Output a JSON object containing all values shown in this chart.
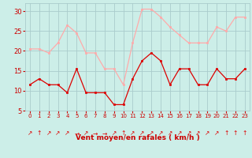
{
  "hours": [
    0,
    1,
    2,
    3,
    4,
    5,
    6,
    7,
    8,
    9,
    10,
    11,
    12,
    13,
    14,
    15,
    16,
    17,
    18,
    19,
    20,
    21,
    22,
    23
  ],
  "wind_avg": [
    11.5,
    13,
    11.5,
    11.5,
    9.5,
    15.5,
    9.5,
    9.5,
    9.5,
    6.5,
    6.5,
    13,
    17.5,
    19.5,
    17.5,
    11.5,
    15.5,
    15.5,
    11.5,
    11.5,
    15.5,
    13,
    13,
    15.5
  ],
  "wind_gust": [
    20.5,
    20.5,
    19.5,
    22,
    26.5,
    24.5,
    19.5,
    19.5,
    15.5,
    15.5,
    11.5,
    22,
    30.5,
    30.5,
    28.5,
    26,
    24,
    22,
    22,
    22,
    26,
    25,
    28.5,
    28.5
  ],
  "avg_color": "#dd0000",
  "gust_color": "#ffaaaa",
  "bg_color": "#cceee8",
  "grid_color": "#aacccc",
  "xlabel": "Vent moyen/en rafales ( km/h )",
  "ylim": [
    5,
    32
  ],
  "yticks": [
    5,
    10,
    15,
    20,
    25,
    30
  ],
  "xlabel_color": "#cc0000",
  "tick_color": "#cc0000",
  "arrow_symbols": [
    "↗",
    "↑",
    "↗",
    "↗",
    "↗",
    "→",
    "↗",
    "→",
    "→",
    "↗",
    "↑",
    "↗",
    "↗",
    "↗",
    "↗",
    "↗",
    "↗",
    "↗",
    "↗",
    "↗",
    "↗",
    "↑",
    "↑",
    "↑"
  ]
}
